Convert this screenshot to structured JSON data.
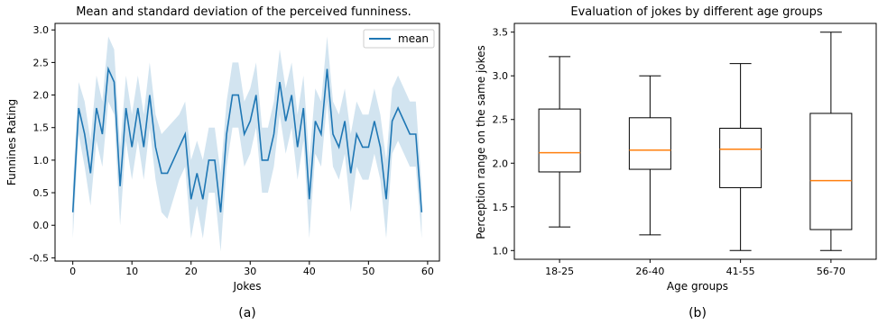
{
  "chart_data": [
    {
      "type": "line",
      "title": "Mean and standard deviation of the perceived funniness.",
      "xlabel": "Jokes",
      "ylabel": "Funnines Rating",
      "xlim": [
        -3,
        62
      ],
      "ylim": [
        -0.55,
        3.1
      ],
      "xticks": [
        0,
        10,
        20,
        30,
        40,
        50,
        60
      ],
      "yticks": [
        -0.5,
        0.0,
        0.5,
        1.0,
        1.5,
        2.0,
        2.5,
        3.0
      ],
      "legend": {
        "entries": [
          "mean"
        ],
        "placement": "top-right"
      },
      "caption": "(a)",
      "colors": {
        "line": "#1f77b4",
        "band": "#1f77b4"
      },
      "series": [
        {
          "name": "mean",
          "x": [
            0,
            1,
            2,
            3,
            4,
            5,
            6,
            7,
            8,
            9,
            10,
            11,
            12,
            13,
            14,
            15,
            16,
            17,
            18,
            19,
            20,
            21,
            22,
            23,
            24,
            25,
            26,
            27,
            28,
            29,
            30,
            31,
            32,
            33,
            34,
            35,
            36,
            37,
            38,
            39,
            40,
            41,
            42,
            43,
            44,
            45,
            46,
            47,
            48,
            49,
            50,
            51,
            52,
            53,
            54,
            55,
            56,
            57,
            58,
            59
          ],
          "y": [
            0.2,
            1.8,
            1.4,
            0.8,
            1.8,
            1.4,
            2.4,
            2.2,
            0.6,
            1.8,
            1.2,
            1.8,
            1.2,
            2.0,
            1.2,
            0.8,
            0.8,
            1.0,
            1.2,
            1.4,
            0.4,
            0.8,
            0.4,
            1.0,
            1.0,
            0.2,
            1.4,
            2.0,
            2.0,
            1.4,
            1.6,
            2.0,
            1.0,
            1.0,
            1.4,
            2.2,
            1.6,
            2.0,
            1.2,
            1.8,
            0.4,
            1.6,
            1.4,
            2.4,
            1.4,
            1.2,
            1.6,
            0.8,
            1.4,
            1.2,
            1.2,
            1.6,
            1.2,
            0.4,
            1.6,
            1.8,
            1.6,
            1.4,
            1.4,
            0.2
          ],
          "std_upper": [
            0.6,
            2.2,
            1.9,
            1.3,
            2.3,
            1.9,
            2.9,
            2.7,
            1.2,
            2.3,
            1.7,
            2.3,
            1.7,
            2.5,
            1.7,
            1.4,
            1.5,
            1.6,
            1.7,
            1.9,
            1.0,
            1.3,
            1.0,
            1.5,
            1.5,
            0.8,
            1.9,
            2.5,
            2.5,
            1.9,
            2.1,
            2.5,
            1.5,
            1.5,
            1.9,
            2.7,
            2.1,
            2.5,
            1.7,
            2.3,
            1.0,
            2.1,
            1.9,
            2.9,
            1.9,
            1.7,
            2.1,
            1.4,
            1.9,
            1.7,
            1.7,
            2.1,
            1.7,
            1.0,
            2.1,
            2.3,
            2.1,
            1.9,
            1.9,
            0.6
          ],
          "std_lower": [
            -0.2,
            1.4,
            0.9,
            0.3,
            1.3,
            0.9,
            1.9,
            1.7,
            0.0,
            1.3,
            0.7,
            1.3,
            0.7,
            1.5,
            0.7,
            0.2,
            0.1,
            0.4,
            0.7,
            0.9,
            -0.2,
            0.3,
            -0.2,
            0.5,
            0.5,
            -0.4,
            0.9,
            1.5,
            1.5,
            0.9,
            1.1,
            1.5,
            0.5,
            0.5,
            0.9,
            1.7,
            1.1,
            1.5,
            0.7,
            1.3,
            -0.2,
            1.1,
            0.9,
            1.9,
            0.9,
            0.7,
            1.1,
            0.2,
            0.9,
            0.7,
            0.7,
            1.1,
            0.7,
            -0.2,
            1.1,
            1.3,
            1.1,
            0.9,
            0.9,
            -0.2
          ]
        }
      ]
    },
    {
      "type": "box",
      "title": "Evaluation of jokes by different age groups",
      "xlabel": "Age groups",
      "ylabel": "Perception range on the same jokes",
      "ylim": [
        0.9,
        3.6
      ],
      "yticks": [
        1.0,
        1.5,
        2.0,
        2.5,
        3.0,
        3.5
      ],
      "caption": "(b)",
      "colors": {
        "median": "#ff7f0e",
        "box": "#000000"
      },
      "categories": [
        "18-25",
        "26-40",
        "41-55",
        "56-70"
      ],
      "boxes": [
        {
          "whisker_low": 1.27,
          "q1": 1.9,
          "median": 2.12,
          "q3": 2.62,
          "whisker_high": 3.22
        },
        {
          "whisker_low": 1.18,
          "q1": 1.93,
          "median": 2.15,
          "q3": 2.52,
          "whisker_high": 3.0
        },
        {
          "whisker_low": 1.0,
          "q1": 1.72,
          "median": 2.16,
          "q3": 2.4,
          "whisker_high": 3.14
        },
        {
          "whisker_low": 1.0,
          "q1": 1.24,
          "median": 1.8,
          "q3": 2.57,
          "whisker_high": 3.5
        }
      ]
    }
  ]
}
